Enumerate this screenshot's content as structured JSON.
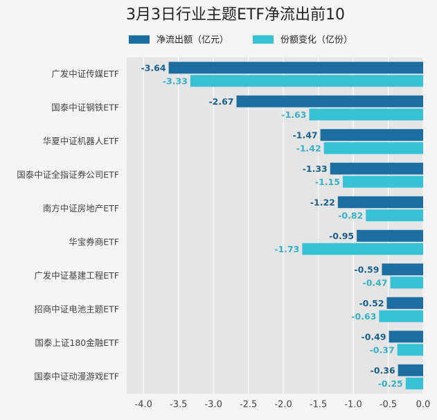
{
  "chart_data": {
    "type": "hbar-grouped",
    "title": "3月3日行业主题ETF净流出前10",
    "categories": [
      "广发中证传媒ETF",
      "国泰中证钢铁ETF",
      "华夏中证机器人ETF",
      "国泰中证全指证券公司ETF",
      "南方中证房地产ETF",
      "华宝券商ETF",
      "广发中证基建工程ETF",
      "招商中证电池主题ETF",
      "国泰上证180金融ETF",
      "国泰中证动漫游戏ETF"
    ],
    "series": [
      {
        "name": "净流出额（亿元）",
        "color": "#1b6e9f",
        "label_color": "#1a5f8c",
        "values": [
          -3.64,
          -2.67,
          -1.47,
          -1.33,
          -1.22,
          -0.95,
          -0.59,
          -0.52,
          -0.49,
          -0.36
        ]
      },
      {
        "name": "份额变化（亿份）",
        "color": "#36c1d5",
        "label_color": "#35b2c9",
        "values": [
          -3.33,
          -1.63,
          -1.42,
          -1.15,
          -0.82,
          -1.73,
          -0.47,
          -0.63,
          -0.37,
          -0.25
        ]
      }
    ],
    "xlim": [
      -4.24,
      0.0
    ],
    "xticks": [
      {
        "value": -4,
        "label": "-4.0"
      },
      {
        "value": -3.5,
        "label": "-3.5"
      },
      {
        "value": -3,
        "label": "-3.0"
      },
      {
        "value": -2.5,
        "label": "-2.5"
      },
      {
        "value": -2,
        "label": "-2.0"
      },
      {
        "value": -1.5,
        "label": "-1.5"
      },
      {
        "value": -1,
        "label": "-1.0"
      },
      {
        "value": -0.5,
        "label": "-0.5"
      },
      {
        "value": 0,
        "label": "0.0"
      }
    ],
    "grid": true
  }
}
